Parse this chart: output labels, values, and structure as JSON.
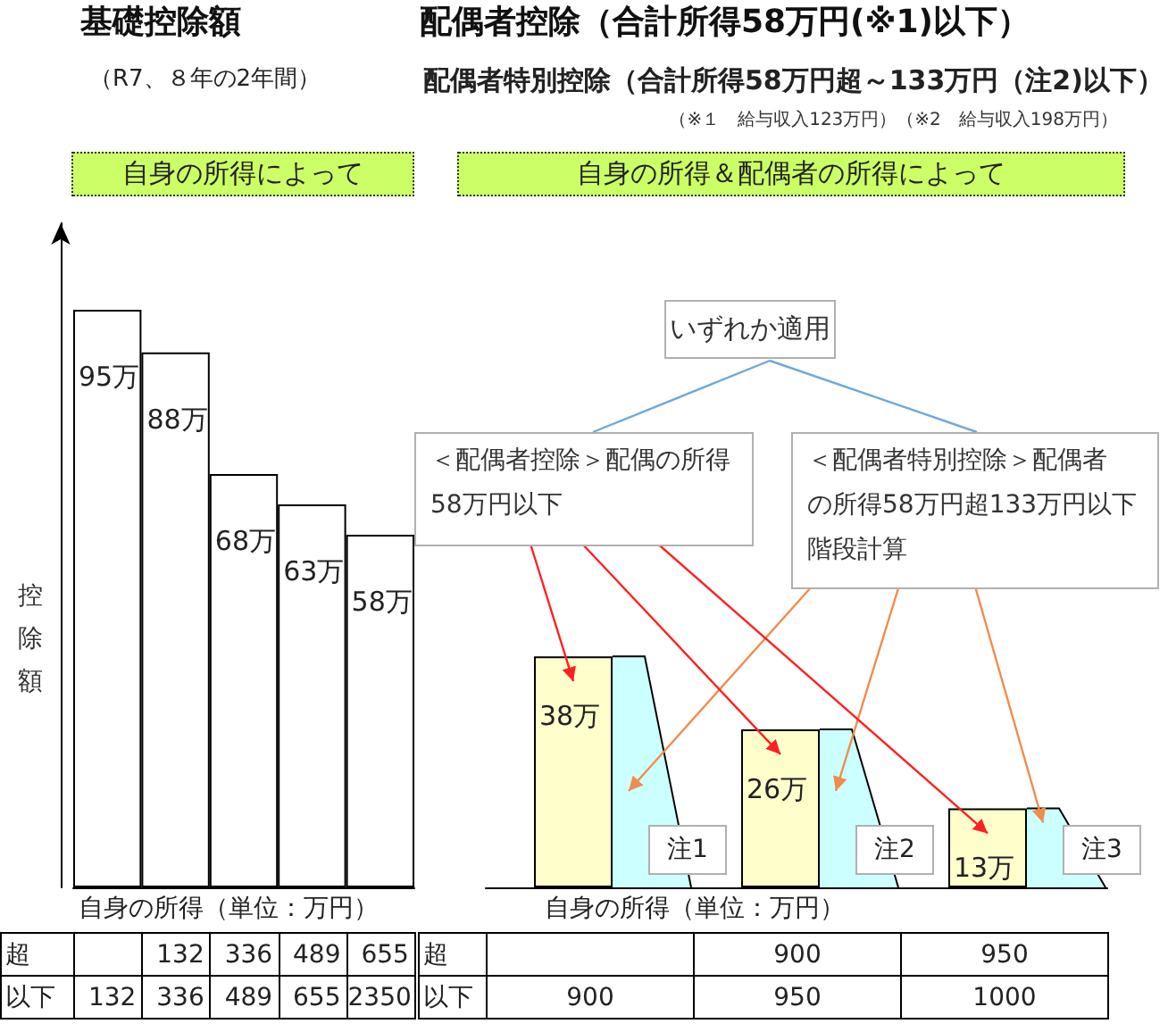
{
  "chart_data": [
    {
      "type": "bar",
      "title": "基礎控除額",
      "subtitle": "（R7、８年の2年間）",
      "ylabel": "控除額",
      "xlabel": "自身の所得（単位：万円）",
      "categories": [
        "132",
        "336",
        "489",
        "655",
        "2350"
      ],
      "values": [
        95,
        88,
        68,
        63,
        58
      ],
      "value_labels": [
        "95万",
        "88万",
        "68万",
        "63万",
        "58万"
      ],
      "color": "#ffffff",
      "tick_labels": "x",
      "annotations": [
        "自身の所得によって",
        "超",
        "以下"
      ]
    },
    {
      "type": "bar",
      "title": "配偶者控除（合計所得58万円(※1)以下）",
      "subtitle": "配偶者特別控除（合計所得58万円超～133万円（注2)以下）",
      "xlabel": "自身の所得（単位：万円）",
      "categories": [
        "900",
        "950",
        "1000"
      ],
      "series": [
        {
          "color": "#ffffcc",
          "values": [
            38,
            26,
            13
          ],
          "value_labels": [
            "38万",
            "26万",
            "13万"
          ]
        },
        {
          "color": "#ccffff",
          "values": [
            38,
            26,
            13
          ]
        }
      ],
      "tick_labels": "x",
      "annotations": [
        "（※１　給与収入123万円）（※2　給与収入198万円）",
        "自身の所得＆配偶者の所得によって",
        "いずれか適用",
        "＜配偶者控除＞配偶の所得58万円以下",
        "＜配偶者特別控除＞配偶者の所得58万円超133万円以下階段計算",
        "注1",
        "注2",
        "注3",
        "超",
        "以下"
      ]
    }
  ]
}
